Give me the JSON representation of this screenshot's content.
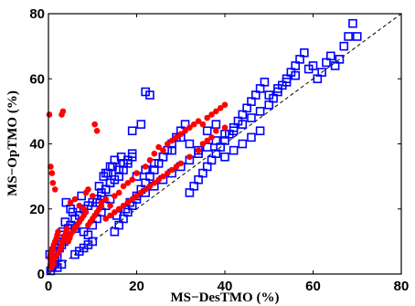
{
  "chart_data": {
    "type": "scatter",
    "xlabel": "MS−DesTMO (%)",
    "ylabel": "MS−OpTMO (%)",
    "xlim": [
      0,
      80
    ],
    "ylim": [
      0,
      80
    ],
    "xticks": [
      "0",
      "20",
      "40",
      "60",
      "80"
    ],
    "yticks": [
      "0",
      "20",
      "40",
      "60",
      "80"
    ],
    "grid": false,
    "reference_line": {
      "style": "dashed",
      "color": "#000000",
      "points": [
        [
          0,
          0
        ],
        [
          80,
          80
        ]
      ]
    },
    "series": [
      {
        "marker": "square-open",
        "color": "#0000ff",
        "points": [
          [
            0.5,
            1
          ],
          [
            0.8,
            2
          ],
          [
            1,
            3
          ],
          [
            1.5,
            4
          ],
          [
            2,
            5
          ],
          [
            0.3,
            6
          ],
          [
            1.2,
            7
          ],
          [
            2.5,
            8
          ],
          [
            3,
            9
          ],
          [
            3.5,
            10
          ],
          [
            4,
            11
          ],
          [
            2.8,
            12
          ],
          [
            3.2,
            13
          ],
          [
            4.5,
            14
          ],
          [
            5,
            15
          ],
          [
            3.8,
            16
          ],
          [
            6,
            17
          ],
          [
            7,
            18
          ],
          [
            5.5,
            19
          ],
          [
            8,
            20
          ],
          [
            9,
            21
          ],
          [
            10,
            22
          ],
          [
            11,
            23
          ],
          [
            7.5,
            24
          ],
          [
            12,
            25
          ],
          [
            13,
            26
          ],
          [
            11.5,
            27
          ],
          [
            14,
            28
          ],
          [
            15,
            29
          ],
          [
            12.5,
            30
          ],
          [
            13.5,
            31
          ],
          [
            16,
            32
          ],
          [
            14.5,
            33
          ],
          [
            17,
            34
          ],
          [
            18,
            35
          ],
          [
            16.5,
            36
          ],
          [
            19,
            37
          ],
          [
            15.5,
            18
          ],
          [
            17.5,
            20
          ],
          [
            18.5,
            22
          ],
          [
            20,
            24
          ],
          [
            21,
            26
          ],
          [
            22,
            28
          ],
          [
            23,
            30
          ],
          [
            24,
            32
          ],
          [
            25,
            34
          ],
          [
            26,
            36
          ],
          [
            27,
            38
          ],
          [
            28,
            40
          ],
          [
            29,
            42
          ],
          [
            30,
            44
          ],
          [
            31,
            46
          ],
          [
            32,
            25
          ],
          [
            33,
            27
          ],
          [
            34,
            29
          ],
          [
            35,
            31
          ],
          [
            36,
            33
          ],
          [
            37,
            35
          ],
          [
            38,
            37
          ],
          [
            39,
            39
          ],
          [
            40,
            41
          ],
          [
            41,
            43
          ],
          [
            42,
            45
          ],
          [
            43,
            47
          ],
          [
            44,
            49
          ],
          [
            45,
            51
          ],
          [
            46,
            53
          ],
          [
            47,
            55
          ],
          [
            48,
            57
          ],
          [
            49,
            59
          ],
          [
            50,
            52
          ],
          [
            51,
            54
          ],
          [
            52,
            56
          ],
          [
            53,
            58
          ],
          [
            54,
            60
          ],
          [
            55,
            62
          ],
          [
            56,
            64
          ],
          [
            57,
            66
          ],
          [
            58,
            68
          ],
          [
            59,
            63
          ],
          [
            60,
            64
          ],
          [
            61,
            60
          ],
          [
            62,
            62
          ],
          [
            63,
            65
          ],
          [
            64,
            67
          ],
          [
            65,
            64
          ],
          [
            66,
            66
          ],
          [
            67,
            70
          ],
          [
            68,
            73
          ],
          [
            69,
            77
          ],
          [
            70,
            73
          ],
          [
            4,
            22
          ],
          [
            5,
            20
          ],
          [
            6,
            14
          ],
          [
            8,
            13
          ],
          [
            9,
            12
          ],
          [
            10,
            15
          ],
          [
            11,
            17
          ],
          [
            12,
            19
          ],
          [
            13,
            21
          ],
          [
            14,
            23
          ],
          [
            15,
            13
          ],
          [
            16,
            15
          ],
          [
            17,
            17
          ],
          [
            18,
            19
          ],
          [
            19,
            21
          ],
          [
            20,
            23
          ],
          [
            22,
            25
          ],
          [
            24,
            27
          ],
          [
            26,
            29
          ],
          [
            28,
            31
          ],
          [
            30,
            33
          ],
          [
            32,
            35
          ],
          [
            34,
            37
          ],
          [
            36,
            39
          ],
          [
            38,
            41
          ],
          [
            40,
            43
          ],
          [
            42,
            44
          ],
          [
            44,
            46
          ],
          [
            46,
            48
          ],
          [
            48,
            50
          ],
          [
            50,
            55
          ],
          [
            52,
            57
          ],
          [
            54,
            59
          ],
          [
            56,
            61
          ],
          [
            19,
            44
          ],
          [
            21,
            46
          ],
          [
            22,
            56
          ],
          [
            23,
            55
          ],
          [
            30,
            42
          ],
          [
            32,
            40
          ],
          [
            34,
            38
          ],
          [
            36,
            44
          ],
          [
            38,
            46
          ],
          [
            40,
            36
          ],
          [
            42,
            38
          ],
          [
            44,
            40
          ],
          [
            46,
            42
          ],
          [
            48,
            44
          ],
          [
            16,
            30
          ],
          [
            17,
            32
          ],
          [
            18,
            34
          ],
          [
            19,
            36
          ],
          [
            13,
            31
          ],
          [
            14,
            33
          ],
          [
            15,
            35
          ],
          [
            20,
            30
          ],
          [
            22,
            32
          ],
          [
            24,
            34
          ],
          [
            26,
            36
          ],
          [
            28,
            38
          ],
          [
            11,
            22
          ],
          [
            12,
            24
          ],
          [
            13,
            26
          ],
          [
            14,
            28
          ],
          [
            2,
            2
          ],
          [
            3,
            3
          ],
          [
            1,
            4
          ],
          [
            6,
            6
          ],
          [
            7,
            7
          ],
          [
            8,
            8
          ],
          [
            9,
            9
          ],
          [
            10,
            10
          ]
        ]
      },
      {
        "marker": "circle-filled",
        "color": "#ff0000",
        "points": [
          [
            0.2,
            49
          ],
          [
            0.5,
            33
          ],
          [
            0.8,
            31
          ],
          [
            1,
            28
          ],
          [
            1.5,
            26
          ],
          [
            3,
            49
          ],
          [
            3.3,
            50
          ],
          [
            5,
            22
          ],
          [
            6,
            23
          ],
          [
            7,
            21
          ],
          [
            8,
            20
          ],
          [
            8.5,
            25
          ],
          [
            9,
            26
          ],
          [
            10,
            24
          ],
          [
            10.5,
            46
          ],
          [
            11,
            44
          ],
          [
            12,
            22
          ],
          [
            13,
            23
          ],
          [
            14,
            21
          ],
          [
            15,
            24
          ],
          [
            16,
            25
          ],
          [
            17,
            27
          ],
          [
            18,
            28
          ],
          [
            19,
            29
          ],
          [
            20,
            31
          ],
          [
            22,
            33
          ],
          [
            23,
            35
          ],
          [
            24,
            37
          ],
          [
            25,
            39
          ],
          [
            26,
            38
          ],
          [
            27,
            40
          ],
          [
            28,
            41
          ],
          [
            29,
            42
          ],
          [
            30,
            43
          ],
          [
            31,
            44
          ],
          [
            32,
            45
          ],
          [
            33,
            46
          ],
          [
            34,
            47
          ],
          [
            35,
            46
          ],
          [
            36,
            48
          ],
          [
            37,
            49
          ],
          [
            38,
            50
          ],
          [
            39,
            51
          ],
          [
            40,
            52
          ],
          [
            0.3,
            5
          ],
          [
            0.5,
            6
          ],
          [
            0.8,
            7
          ],
          [
            1,
            8
          ],
          [
            1.2,
            9
          ],
          [
            1.5,
            10
          ],
          [
            1.8,
            11
          ],
          [
            2,
            12
          ],
          [
            2.2,
            13
          ],
          [
            2.5,
            7
          ],
          [
            2.8,
            8
          ],
          [
            3,
            9
          ],
          [
            3.2,
            10
          ],
          [
            3.5,
            11
          ],
          [
            3.8,
            12
          ],
          [
            4,
            13
          ],
          [
            4.2,
            14
          ],
          [
            4.5,
            10
          ],
          [
            4.8,
            11
          ],
          [
            5,
            12
          ],
          [
            5.5,
            13
          ],
          [
            6,
            14
          ],
          [
            6.5,
            15
          ],
          [
            7,
            16
          ],
          [
            7.5,
            17
          ],
          [
            8,
            18
          ],
          [
            8.5,
            19
          ],
          [
            9,
            15
          ],
          [
            9.5,
            16
          ],
          [
            10,
            17
          ],
          [
            10.5,
            18
          ],
          [
            11,
            19
          ],
          [
            11.5,
            20
          ],
          [
            12,
            21
          ],
          [
            13,
            17
          ],
          [
            14,
            18
          ],
          [
            15,
            19
          ],
          [
            16,
            20
          ],
          [
            17,
            21
          ],
          [
            18,
            22
          ],
          [
            19,
            23
          ],
          [
            20,
            24
          ],
          [
            21,
            25
          ],
          [
            22,
            26
          ],
          [
            23,
            27
          ],
          [
            24,
            28
          ],
          [
            25,
            29
          ],
          [
            26,
            30
          ],
          [
            27,
            31
          ],
          [
            28,
            32
          ],
          [
            29,
            33
          ],
          [
            30,
            34
          ],
          [
            32,
            36
          ],
          [
            34,
            38
          ],
          [
            35,
            40
          ],
          [
            36,
            41
          ],
          [
            37,
            42
          ],
          [
            38,
            44
          ],
          [
            40,
            45
          ],
          [
            0.5,
            3
          ],
          [
            1,
            4
          ],
          [
            1.5,
            5
          ],
          [
            2,
            6
          ],
          [
            0.7,
            2
          ],
          [
            1.2,
            3
          ]
        ]
      }
    ]
  }
}
